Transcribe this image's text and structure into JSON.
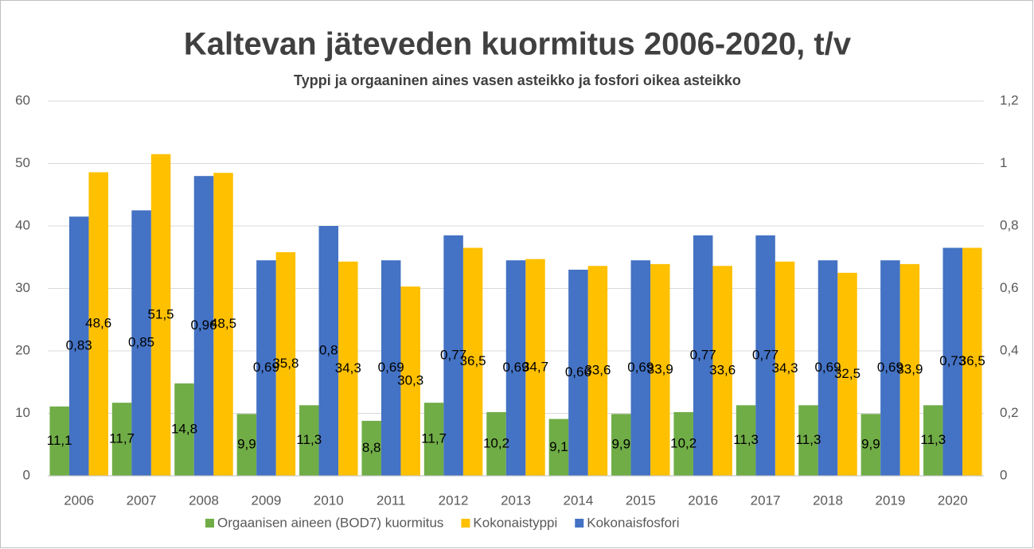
{
  "chart_data": {
    "type": "bar",
    "title": "Kaltevan jäteveden kuormitus 2006-2020, t/v",
    "subtitle": "Typpi ja orgaaninen aines vasen asteikko ja fosfori oikea asteikko",
    "categories": [
      "2006",
      "2007",
      "2008",
      "2009",
      "2010",
      "2011",
      "2012",
      "2013",
      "2014",
      "2015",
      "2016",
      "2017",
      "2018",
      "2019",
      "2020"
    ],
    "series": [
      {
        "name": "Orgaanisen aineen (BOD7) kuormitus",
        "color": "#70ad47",
        "values": [
          11.1,
          11.7,
          14.8,
          9.9,
          11.3,
          8.8,
          11.7,
          10.2,
          9.1,
          9.9,
          10.2,
          11.3,
          11.3,
          9.9,
          11.3
        ],
        "value_labels": [
          "11,1",
          "11,7",
          "14,8",
          "9,9",
          "11,3",
          "8,8",
          "11,7",
          "10,2",
          "9,1",
          "9,9",
          "10,2",
          "11,3",
          "11,3",
          "9,9",
          "11,3"
        ]
      },
      {
        "name": "Kokonaistyppi",
        "color": "#ffc000",
        "values": [
          48.6,
          51.5,
          48.5,
          35.8,
          34.3,
          30.3,
          36.5,
          34.7,
          33.6,
          33.9,
          33.6,
          34.3,
          32.5,
          33.9,
          36.5
        ],
        "value_labels": [
          "48,6",
          "51,5",
          "48,5",
          "35,8",
          "34,3",
          "30,3",
          "36,5",
          "34,7",
          "33,6",
          "33,9",
          "33,6",
          "34,3",
          "32,5",
          "33,9",
          "36,5"
        ]
      },
      {
        "name": "Kokonaisfosfori",
        "color": "#4472c4",
        "axis": "y2",
        "values": [
          0.83,
          0.85,
          0.96,
          0.69,
          0.8,
          0.69,
          0.77,
          0.69,
          0.66,
          0.69,
          0.77,
          0.77,
          0.69,
          0.69,
          0.73
        ],
        "value_labels": [
          "0,83",
          "0,85",
          "0,96",
          "0,69",
          "0,8",
          "0,69",
          "0,77",
          "0,69",
          "0,66",
          "0,69",
          "0,77",
          "0,77",
          "0,69",
          "0,69",
          "0,73"
        ]
      }
    ],
    "ylim": [
      0,
      60
    ],
    "yticks": [
      0,
      10,
      20,
      30,
      40,
      50,
      60
    ],
    "y2lim": [
      0,
      1.2
    ],
    "y2ticks": [
      0,
      {
        "value": 0.2,
        "label": "0,2"
      },
      {
        "value": 0.4,
        "label": "0,4"
      },
      {
        "value": 0.6,
        "label": "0,6"
      },
      {
        "value": 0.8,
        "label": "0,8"
      },
      1,
      {
        "value": 1.2,
        "label": "1,2"
      }
    ],
    "grid": true,
    "legend": "bottom"
  }
}
